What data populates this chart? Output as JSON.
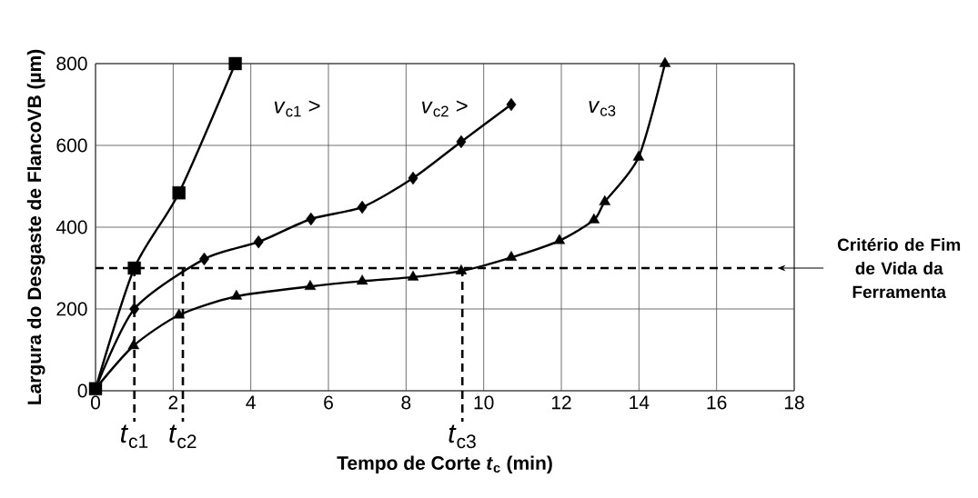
{
  "chart_data": {
    "type": "line",
    "xlabel": "Tempo de Corte *t*$_{c}$ (min)",
    "ylabel": "Largura do Desgaste de FlancoVB (µm)",
    "xlim": [
      0,
      18
    ],
    "ylim": [
      0,
      800
    ],
    "xticks": [
      0,
      2,
      4,
      6,
      8,
      10,
      12,
      14,
      16,
      18
    ],
    "yticks": [
      0,
      200,
      400,
      600,
      800
    ],
    "grid": true,
    "line_style": "solid",
    "series": [
      {
        "name": "*v*$_{c1}$ >",
        "color": "#000000",
        "marker": "square",
        "x": [
          0,
          1.0,
          2.15,
          3.6
        ],
        "values": [
          5,
          300,
          484,
          800
        ]
      },
      {
        "name": "*v*$_{c2}$ >",
        "color": "#000000",
        "marker": "diamond",
        "x": [
          0,
          1.0,
          2.8,
          4.2,
          5.55,
          6.87,
          8.18,
          9.42,
          10.71
        ],
        "values": [
          5,
          200,
          322,
          364,
          420,
          449,
          520,
          609,
          700
        ]
      },
      {
        "name": "*v*$_{c3}$",
        "color": "#000000",
        "marker": "triangle",
        "x": [
          0,
          0.98,
          2.15,
          3.63,
          5.53,
          6.87,
          8.18,
          9.42,
          10.71,
          11.95,
          12.84,
          13.12,
          13.99,
          14.67
        ],
        "values": [
          5,
          110,
          185,
          231,
          255,
          268,
          278,
          293,
          326,
          367,
          418,
          462,
          571,
          800
        ]
      }
    ],
    "ref_lines": [
      {
        "axis": "y",
        "value": 300,
        "label": "Critério de Fim de Vida da Ferramenta",
        "line_style": "dashed"
      },
      {
        "axis": "x",
        "value": 1.0,
        "label": "*t*$_{c1}$",
        "line_style": "dashed"
      },
      {
        "axis": "x",
        "value": 2.25,
        "label": "*t*$_{c2}$",
        "line_style": "dashed"
      },
      {
        "axis": "x",
        "value": 9.45,
        "label": "*t*$_{c3}$",
        "line_style": "dashed"
      }
    ]
  }
}
